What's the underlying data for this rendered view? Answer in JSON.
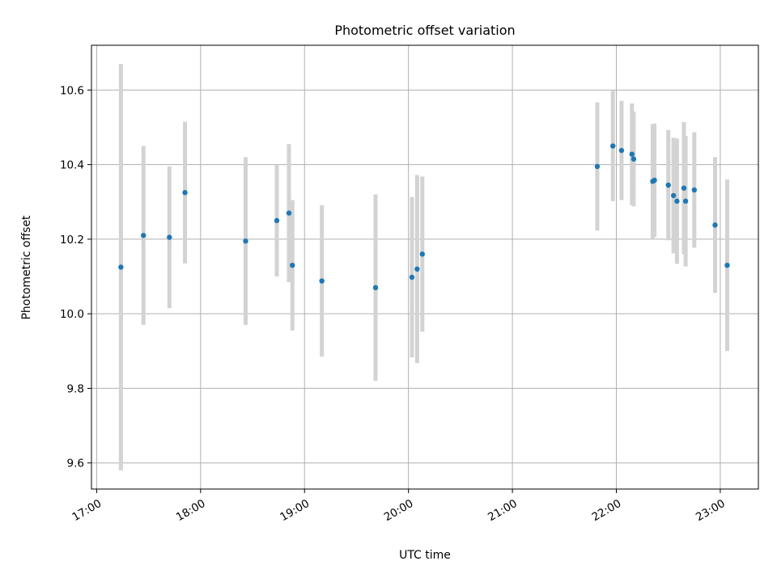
{
  "chart_data": {
    "type": "scatter",
    "title": "Photometric offset variation",
    "xlabel": "UTC time",
    "ylabel": "Photometric offset",
    "x_unit": "hours UTC",
    "xlim": [
      "16:57",
      "23:22"
    ],
    "ylim": [
      9.53,
      10.72
    ],
    "x_ticks": [
      "17:00",
      "18:00",
      "19:00",
      "20:00",
      "21:00",
      "22:00",
      "23:00"
    ],
    "y_ticks": [
      9.6,
      9.8,
      10.0,
      10.2,
      10.4,
      10.6
    ],
    "y_tick_labels": [
      "9.6",
      "9.8",
      "10.0",
      "10.2",
      "10.4",
      "10.6"
    ],
    "grid": true,
    "point_color": "#1f77b4",
    "errorbar_color": "#d3d3d3",
    "points": [
      {
        "t": "17:14",
        "y": 10.125,
        "err": 0.545
      },
      {
        "t": "17:27",
        "y": 10.21,
        "err": 0.24
      },
      {
        "t": "17:42",
        "y": 10.205,
        "err": 0.19
      },
      {
        "t": "17:51",
        "y": 10.325,
        "err": 0.19
      },
      {
        "t": "18:26",
        "y": 10.195,
        "err": 0.225
      },
      {
        "t": "18:44",
        "y": 10.25,
        "err": 0.15
      },
      {
        "t": "18:51",
        "y": 10.27,
        "err": 0.185
      },
      {
        "t": "18:53",
        "y": 10.13,
        "err": 0.175
      },
      {
        "t": "19:10",
        "y": 10.088,
        "err": 0.203
      },
      {
        "t": "19:41",
        "y": 10.07,
        "err": 0.25
      },
      {
        "t": "20:02",
        "y": 10.098,
        "err": 0.215
      },
      {
        "t": "20:05",
        "y": 10.12,
        "err": 0.252
      },
      {
        "t": "20:08",
        "y": 10.16,
        "err": 0.208
      },
      {
        "t": "21:49",
        "y": 10.395,
        "err": 0.172
      },
      {
        "t": "21:58",
        "y": 10.45,
        "err": 0.148
      },
      {
        "t": "22:03",
        "y": 10.438,
        "err": 0.133
      },
      {
        "t": "22:09",
        "y": 10.428,
        "err": 0.136
      },
      {
        "t": "22:10",
        "y": 10.415,
        "err": 0.127
      },
      {
        "t": "22:21",
        "y": 10.355,
        "err": 0.153
      },
      {
        "t": "22:22",
        "y": 10.358,
        "err": 0.152
      },
      {
        "t": "22:30",
        "y": 10.345,
        "err": 0.148
      },
      {
        "t": "22:33",
        "y": 10.317,
        "err": 0.155
      },
      {
        "t": "22:35",
        "y": 10.302,
        "err": 0.168
      },
      {
        "t": "22:39",
        "y": 10.337,
        "err": 0.177
      },
      {
        "t": "22:40",
        "y": 10.302,
        "err": 0.175
      },
      {
        "t": "22:45",
        "y": 10.332,
        "err": 0.155
      },
      {
        "t": "22:57",
        "y": 10.238,
        "err": 0.182
      },
      {
        "t": "23:04",
        "y": 10.13,
        "err": 0.23
      }
    ]
  }
}
